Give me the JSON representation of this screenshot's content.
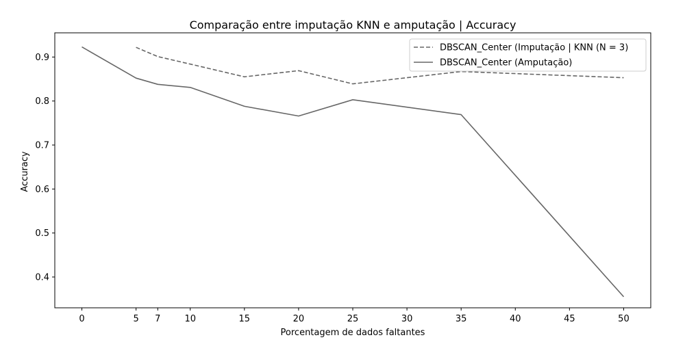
{
  "chart_data": {
    "type": "line",
    "title": "Comparação entre imputação KNN e amputação | Accuracy",
    "xlabel": "Porcentagem de dados faltantes",
    "ylabel": "Accuracy",
    "xlim": [
      -2.5,
      52.5
    ],
    "ylim": [
      0.33,
      0.955
    ],
    "xticks": [
      0,
      5,
      7,
      10,
      15,
      20,
      25,
      30,
      35,
      40,
      45,
      50
    ],
    "yticks": [
      0.4,
      0.5,
      0.6,
      0.7,
      0.8,
      0.9
    ],
    "xtick_labels": [
      "0",
      "5",
      "7",
      "10",
      "15",
      "20",
      "25",
      "30",
      "35",
      "40",
      "45",
      "50"
    ],
    "ytick_labels": [
      "0.4",
      "0.5",
      "0.6",
      "0.7",
      "0.8",
      "0.9"
    ],
    "legend_position": "top-right",
    "grid": false,
    "series": [
      {
        "name": "DBSCAN_Center (Imputação | KNN (N = 3)",
        "style": "dashed",
        "color": "#666666",
        "x": [
          5,
          7,
          10,
          15,
          20,
          25,
          35,
          50
        ],
        "y": [
          0.922,
          0.901,
          0.884,
          0.855,
          0.869,
          0.839,
          0.867,
          0.853
        ]
      },
      {
        "name": "DBSCAN_Center (Amputação)",
        "style": "solid",
        "color": "#666666",
        "x": [
          0,
          5,
          7,
          10,
          15,
          20,
          25,
          35,
          50
        ],
        "y": [
          0.923,
          0.852,
          0.838,
          0.831,
          0.788,
          0.766,
          0.803,
          0.769,
          0.355
        ]
      }
    ]
  }
}
